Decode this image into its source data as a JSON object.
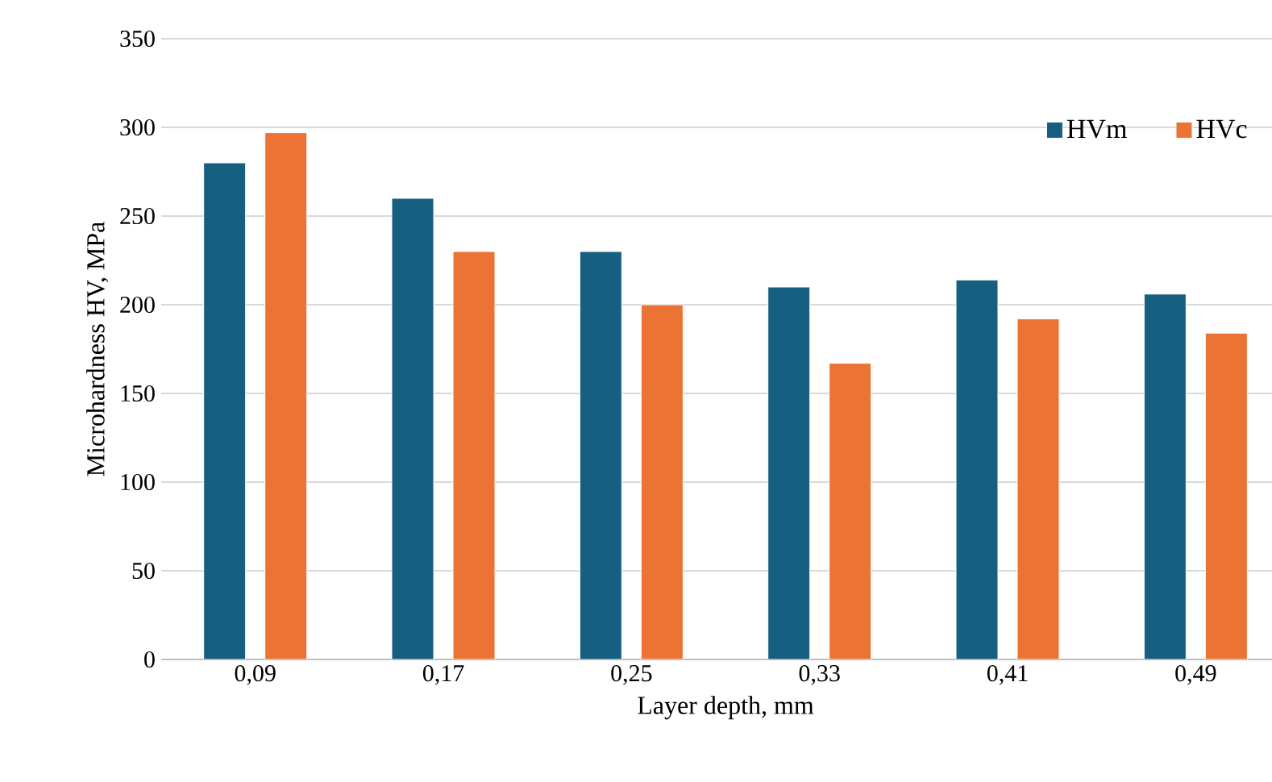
{
  "chart_data": {
    "type": "bar",
    "xlabel": "Layer depth, mm",
    "ylabel": "Microhardness HV, MPa",
    "categories": [
      "0,09",
      "0,17",
      "0,25",
      "0,33",
      "0,41",
      "0,49"
    ],
    "series": [
      {
        "name": "HVm",
        "color": "#175f81",
        "values": [
          280,
          260,
          230,
          210,
          214,
          206
        ]
      },
      {
        "name": "HVc",
        "color": "#eb7333",
        "values": [
          297,
          230,
          200,
          167,
          192,
          184
        ]
      }
    ],
    "ylim": [
      0,
      350
    ],
    "yticks": [
      0,
      50,
      100,
      150,
      200,
      250,
      300,
      350
    ],
    "grid": "y",
    "legend": "top right"
  }
}
